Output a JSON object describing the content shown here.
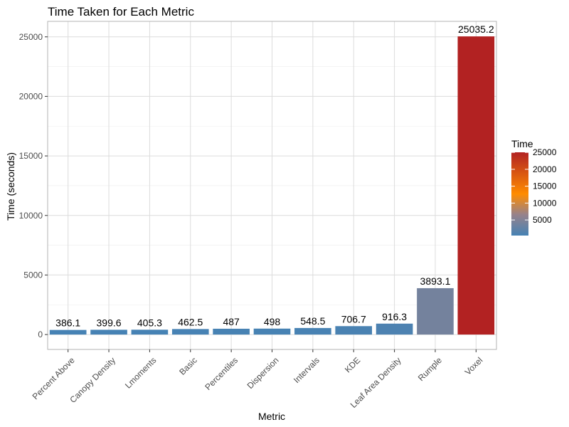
{
  "chart_data": {
    "type": "bar",
    "title": "Time Taken for Each Metric",
    "xlabel": "Metric",
    "ylabel": "Time (seconds)",
    "categories": [
      "Percent Above",
      "Canopy Density",
      "Lmoments",
      "Basic",
      "Percentiles",
      "Dispersion",
      "Intervals",
      "KDE",
      "Leaf Area Density",
      "Rumple",
      "Voxel"
    ],
    "values": [
      386.1,
      399.6,
      405.3,
      462.5,
      487,
      498,
      548.5,
      706.7,
      916.3,
      3893.1,
      25035.2
    ],
    "data_labels": [
      "386.1",
      "399.6",
      "405.3",
      "462.5",
      "487",
      "498",
      "548.5",
      "706.7",
      "916.3",
      "3893.1",
      "25035.2"
    ],
    "ylim": [
      -1250,
      26300
    ],
    "y_ticks": [
      0,
      5000,
      10000,
      15000,
      20000,
      25000
    ],
    "y_tick_labels": [
      "0",
      "5000",
      "10000",
      "15000",
      "20000",
      "25000"
    ],
    "grid": true,
    "legend": {
      "title": "Time",
      "position": "right",
      "ticks": [
        5000,
        10000,
        15000,
        20000,
        25000
      ],
      "tick_labels": [
        "5000",
        "10000",
        "15000",
        "20000",
        "25000"
      ],
      "range": [
        386.1,
        25035.2
      ],
      "gradient_colors": [
        "#4682b4",
        "#ff8c00",
        "#b22222"
      ]
    },
    "colors": {
      "low": "#4682b4",
      "mid": "#ff8c00",
      "high": "#b22222",
      "grid": "#dcdcdc",
      "panel_border": "#b3b3b3"
    }
  }
}
